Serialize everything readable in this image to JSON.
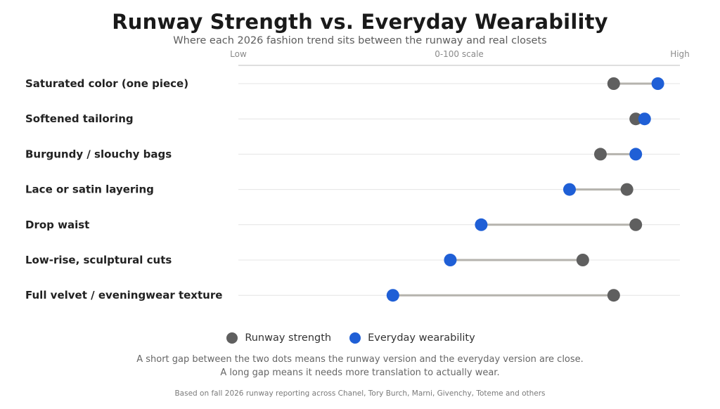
{
  "chart_data": {
    "type": "dumbbell",
    "title": "Runway Strength vs. Everyday Wearability",
    "subtitle": "Where each 2026 fashion trend sits between the runway and real closets",
    "axis": {
      "scale_label": "0-100 scale",
      "low_label": "Low",
      "high_label": "High",
      "xlim": [
        0,
        100
      ]
    },
    "grid": true,
    "categories": [
      "Saturated color (one piece)",
      "Softened tailoring",
      "Burgundy / slouchy bags",
      "Lace or satin layering",
      "Drop waist",
      "Low-rise, sculptural cuts",
      "Full velvet / eveningwear texture"
    ],
    "series": [
      {
        "name": "Runway strength",
        "color": "#5f5f5f",
        "values": [
          85,
          90,
          82,
          88,
          90,
          78,
          85
        ]
      },
      {
        "name": "Everyday wearability",
        "color": "#1f5fd6",
        "values": [
          95,
          92,
          90,
          75,
          55,
          48,
          35
        ]
      }
    ],
    "connector_color": "#b5b3ad",
    "legend_position": "bottom"
  },
  "notes": {
    "line1": "A short gap between the two dots means the runway version and the everyday version are close.",
    "line2": "A long gap means it needs more translation to actually wear."
  },
  "source": "Based on fall 2026 runway reporting across Chanel, Tory Burch, Marni, Givenchy, Toteme and others"
}
